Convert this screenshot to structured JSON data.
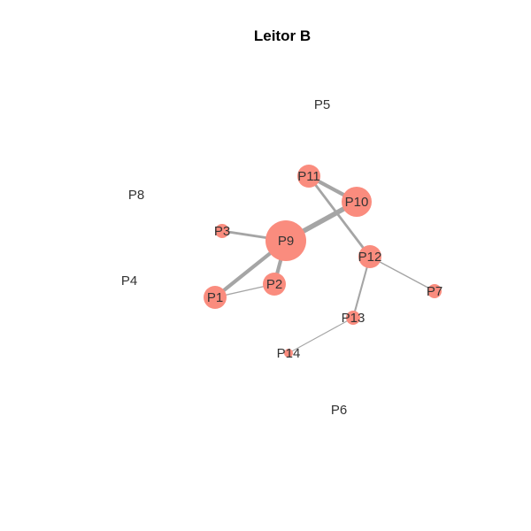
{
  "title": "Leitor B",
  "colors": {
    "node_fill": "#fa8c7e",
    "edge": "#a5a5a5",
    "label": "#333333",
    "title": "#000000"
  },
  "nodes": [
    {
      "id": "P1",
      "label": "P1",
      "degree_size": 2
    },
    {
      "id": "P2",
      "label": "P2",
      "degree_size": 2
    },
    {
      "id": "P3",
      "label": "P3",
      "degree_size": 1
    },
    {
      "id": "P4",
      "label": "P4",
      "degree_size": 0
    },
    {
      "id": "P5",
      "label": "P5",
      "degree_size": 0
    },
    {
      "id": "P6",
      "label": "P6",
      "degree_size": 0
    },
    {
      "id": "P7",
      "label": "P7",
      "degree_size": 1
    },
    {
      "id": "P8",
      "label": "P8",
      "degree_size": 0
    },
    {
      "id": "P9",
      "label": "P9",
      "degree_size": 6
    },
    {
      "id": "P10",
      "label": "P10",
      "degree_size": 3
    },
    {
      "id": "P11",
      "label": "P11",
      "degree_size": 2
    },
    {
      "id": "P12",
      "label": "P12",
      "degree_size": 2
    },
    {
      "id": "P13",
      "label": "P13",
      "degree_size": 1
    },
    {
      "id": "P14",
      "label": "P14",
      "degree_size": 0.5
    }
  ],
  "edges": [
    {
      "source": "P9",
      "target": "P10",
      "weight": 4
    },
    {
      "source": "P9",
      "target": "P1",
      "weight": 3
    },
    {
      "source": "P9",
      "target": "P2",
      "weight": 3
    },
    {
      "source": "P9",
      "target": "P3",
      "weight": 2
    },
    {
      "source": "P11",
      "target": "P10",
      "weight": 3
    },
    {
      "source": "P11",
      "target": "P12",
      "weight": 2
    },
    {
      "source": "P1",
      "target": "P2",
      "weight": 1
    },
    {
      "source": "P12",
      "target": "P7",
      "weight": 1
    },
    {
      "source": "P12",
      "target": "P13",
      "weight": 1.5
    },
    {
      "source": "P13",
      "target": "P14",
      "weight": 0.8
    }
  ]
}
